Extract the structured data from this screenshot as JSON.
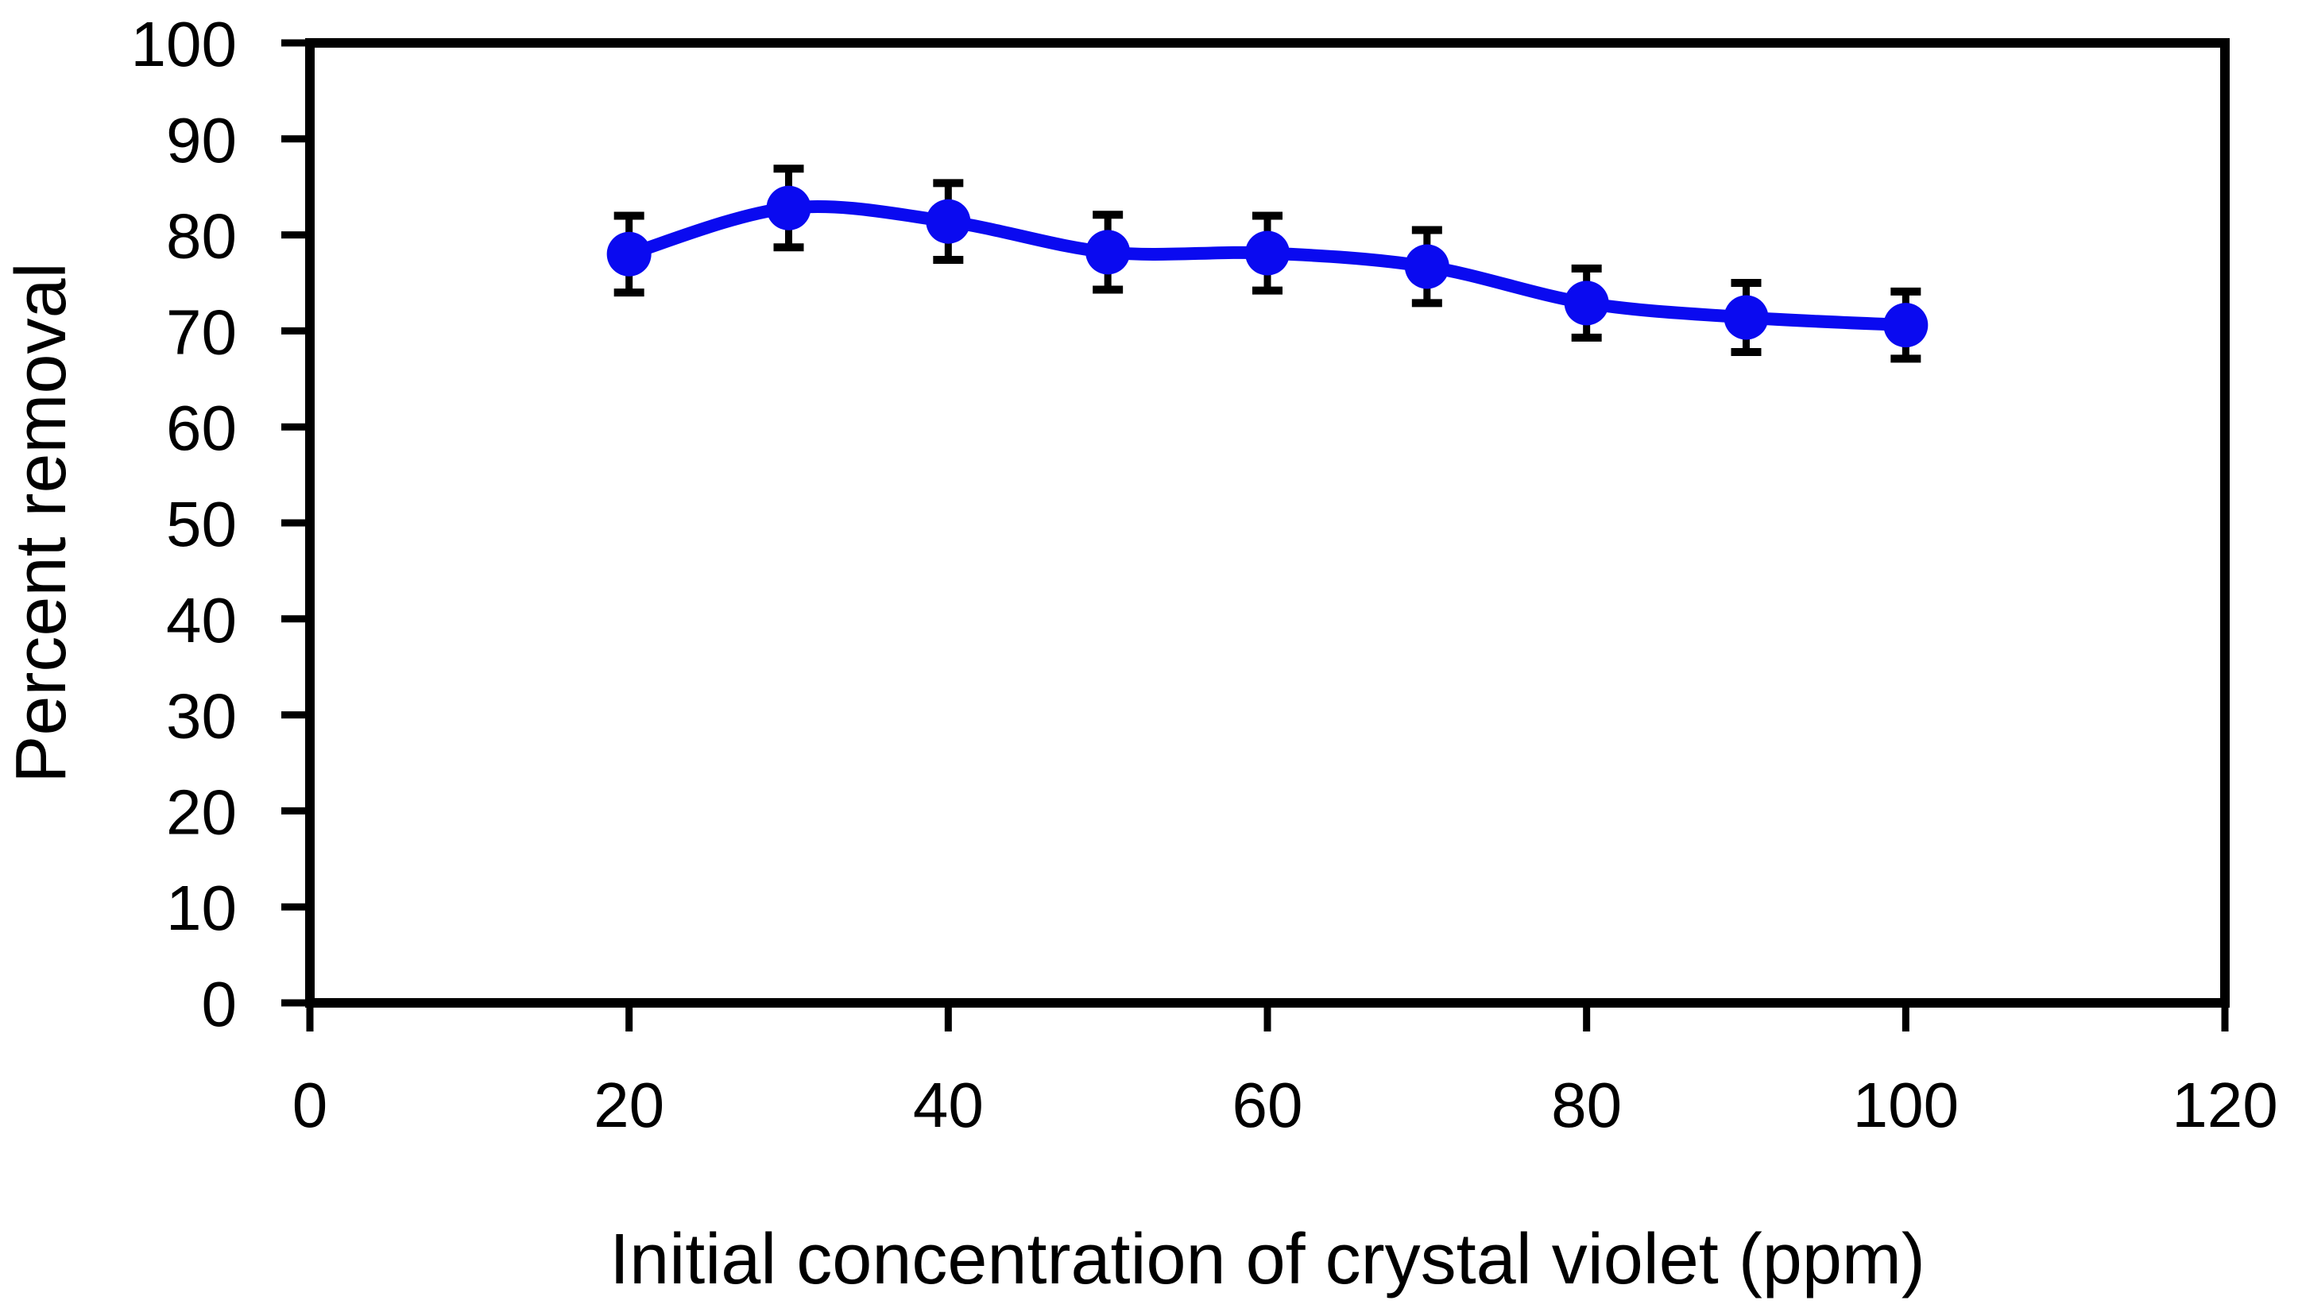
{
  "chart_data": {
    "type": "line",
    "title": "",
    "xlabel": "Initial concentration of crystal violet (ppm)",
    "ylabel": "Percent removal",
    "x": [
      20,
      30,
      40,
      50,
      60,
      70,
      80,
      90,
      100
    ],
    "series": [
      {
        "name": "Percent removal",
        "values": [
          78.0,
          82.8,
          81.4,
          78.2,
          78.1,
          76.7,
          72.9,
          71.4,
          70.6
        ],
        "error_bars": [
          4.0,
          4.1,
          4.0,
          3.9,
          3.9,
          3.8,
          3.6,
          3.6,
          3.5
        ]
      }
    ],
    "xlim": [
      0,
      120
    ],
    "ylim": [
      0,
      100
    ],
    "x_ticks": [
      0,
      20,
      40,
      60,
      80,
      100,
      120
    ],
    "y_ticks": [
      0,
      10,
      20,
      30,
      40,
      50,
      60,
      70,
      80,
      90,
      100
    ],
    "grid": false,
    "legend": false,
    "smoothed_line": true,
    "line_color": "#0a0af0",
    "marker": "circle",
    "marker_color": "#0a0af0",
    "error_bar_color": "#000000",
    "axis_color": "#000000",
    "background_color": "#ffffff"
  }
}
